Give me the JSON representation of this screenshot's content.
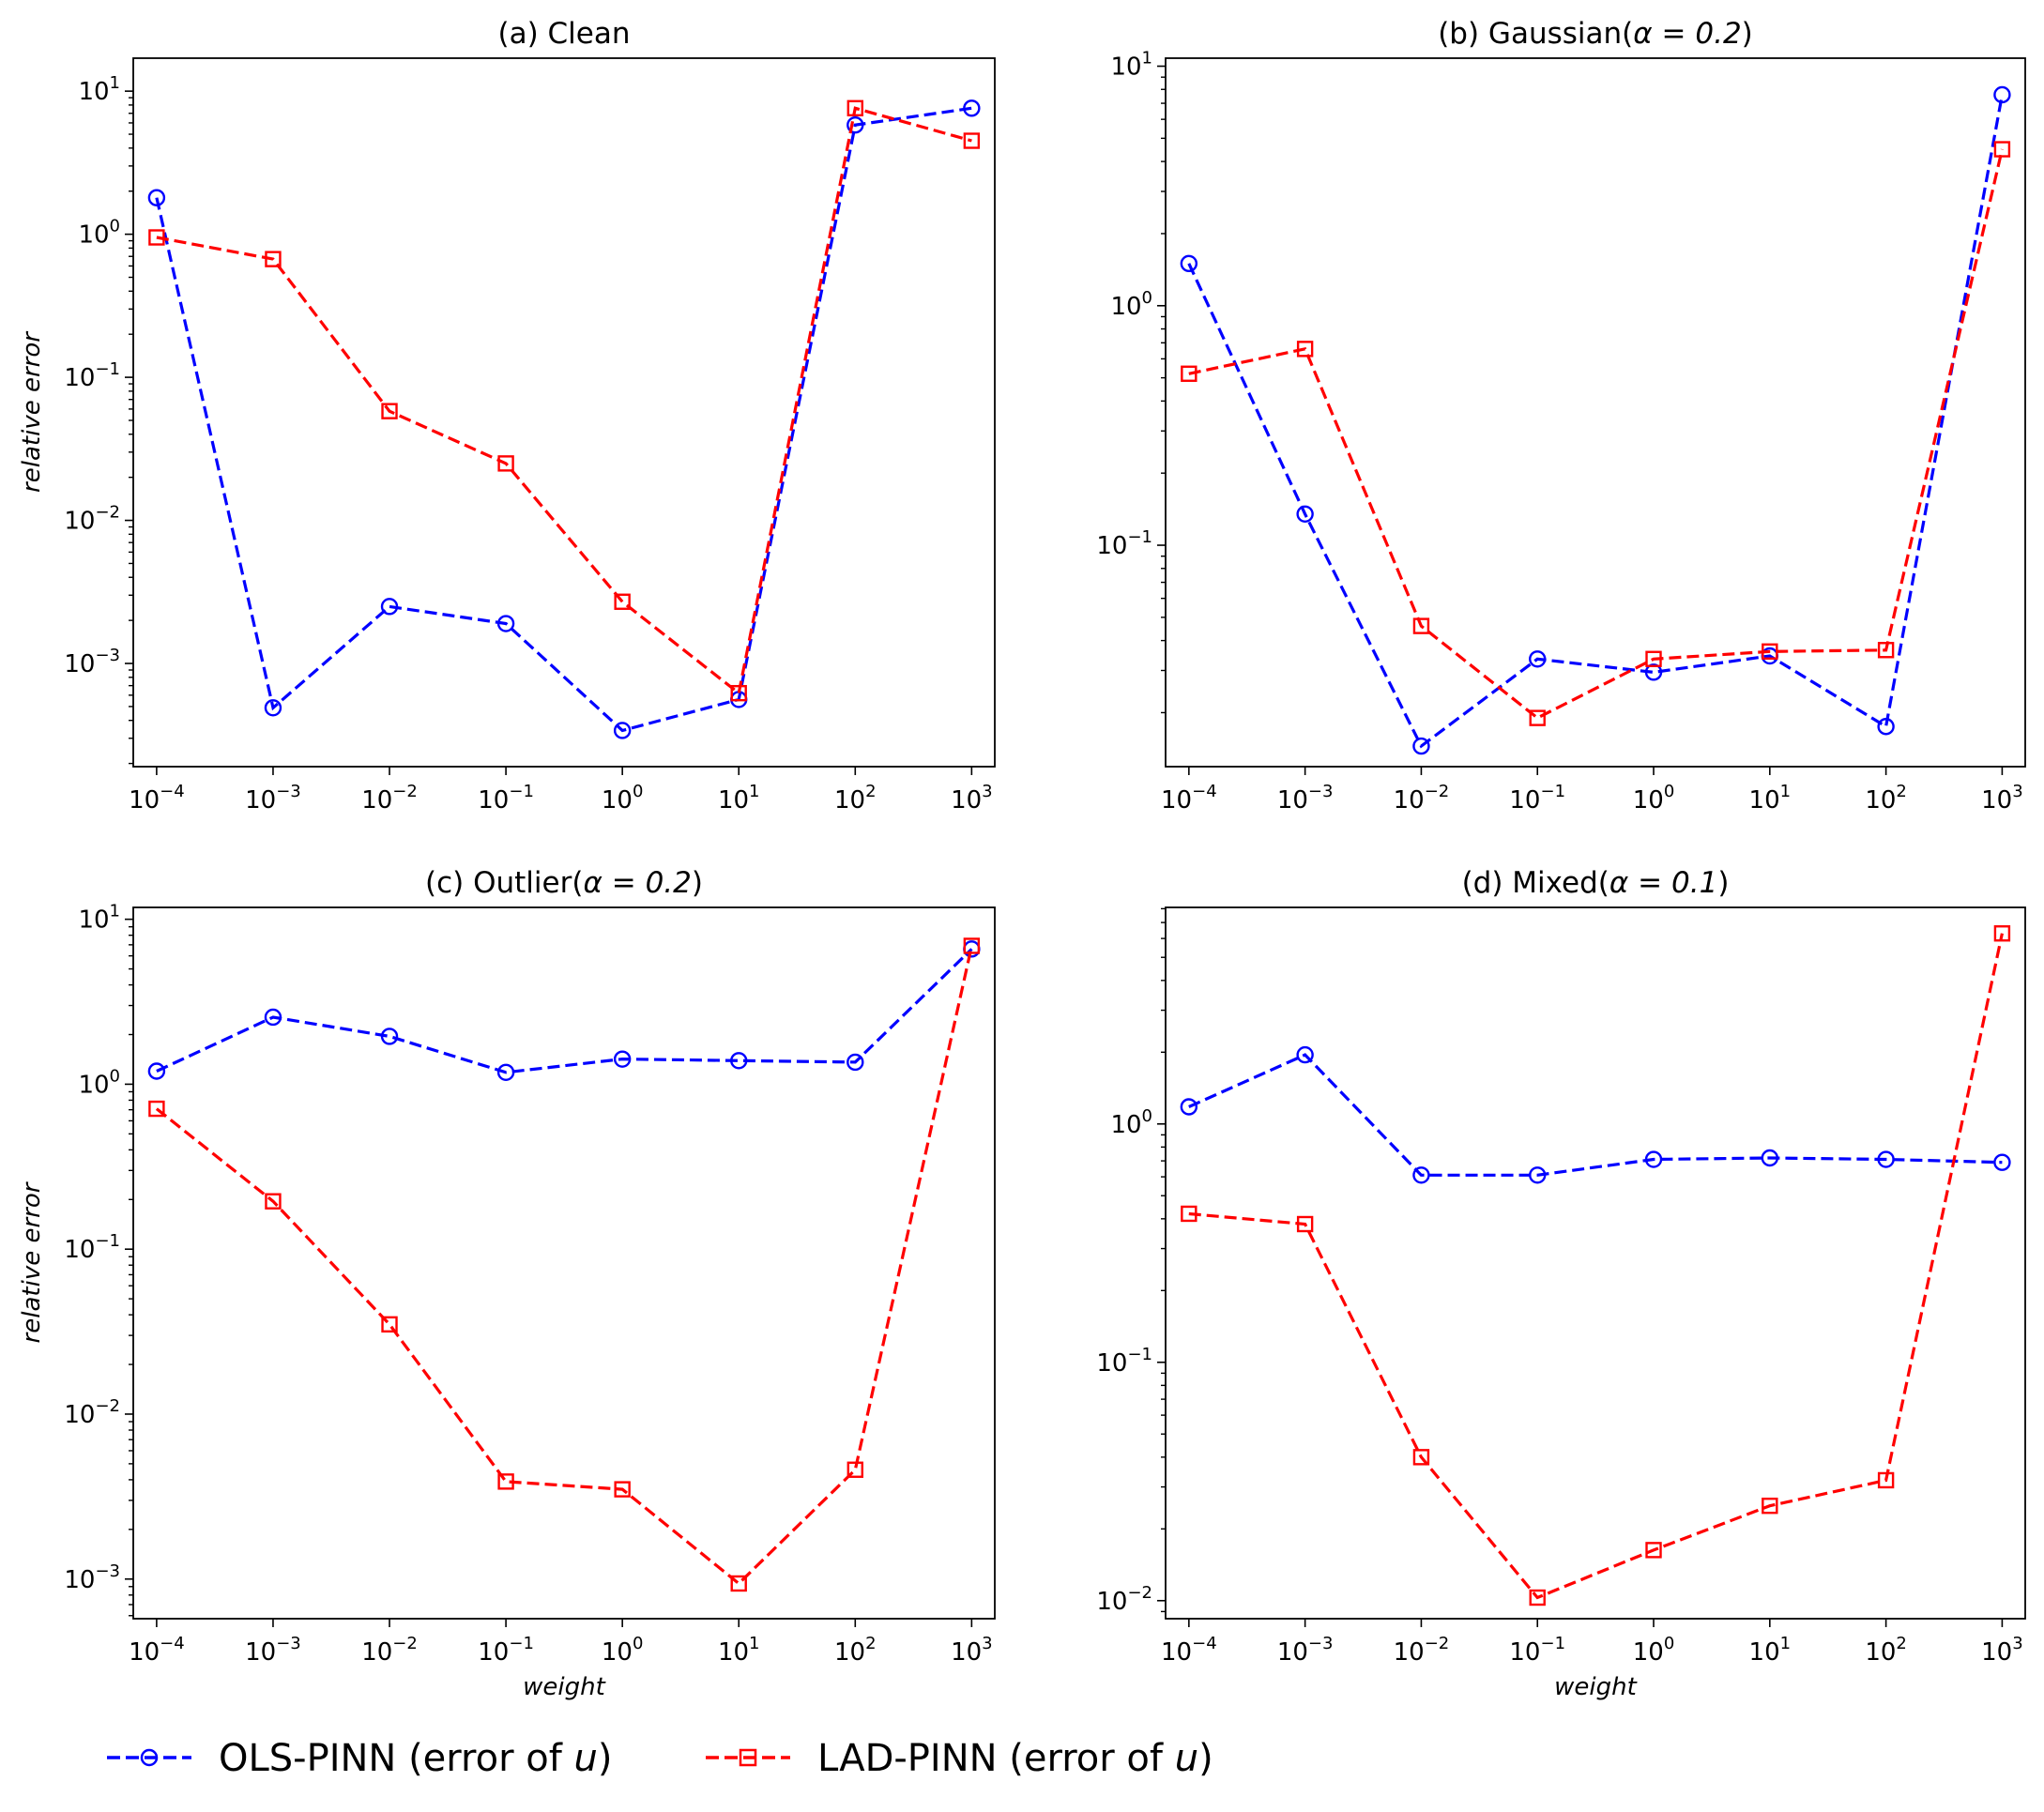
{
  "legend": [
    {
      "label": "OLS-PINN (error of ",
      "var": "u",
      "close": ")",
      "color": "#0000ff",
      "marker": "circle"
    },
    {
      "label": "LAD-PINN (error of ",
      "var": "u",
      "close": ")",
      "color": "#ff0000",
      "marker": "square"
    }
  ],
  "chart_data": [
    {
      "type": "line",
      "title_prefix": "(a) Clean",
      "title_param": "",
      "xlabel": "",
      "ylabel": "relative error",
      "xscale": "log",
      "yscale": "log",
      "ylim": [
        0.00019,
        17
      ],
      "yticks": [
        0.001,
        0.01,
        0.1,
        1,
        10
      ],
      "ytick_labels": [
        [
          "10",
          "−3"
        ],
        [
          "10",
          "−2"
        ],
        [
          "10",
          "−1"
        ],
        [
          "10",
          "0"
        ],
        [
          "10",
          "1"
        ]
      ],
      "x": [
        0.0001,
        0.001,
        0.01,
        0.1,
        1,
        10,
        100,
        1000
      ],
      "xtick_labels": [
        [
          "10",
          "−4"
        ],
        [
          "10",
          "−3"
        ],
        [
          "10",
          "−2"
        ],
        [
          "10",
          "−1"
        ],
        [
          "10",
          "0"
        ],
        [
          "10",
          "1"
        ],
        [
          "10",
          "2"
        ],
        [
          "10",
          "3"
        ]
      ],
      "series": [
        {
          "name": "OLS-PINN",
          "color": "#0000ff",
          "marker": "circle",
          "values": [
            1.8,
            0.00049,
            0.0025,
            0.0019,
            0.00034,
            0.00056,
            5.8,
            7.6
          ]
        },
        {
          "name": "LAD-PINN",
          "color": "#ff0000",
          "marker": "square",
          "values": [
            0.95,
            0.67,
            0.058,
            0.025,
            0.0027,
            0.00062,
            7.6,
            4.5
          ]
        }
      ]
    },
    {
      "type": "line",
      "title_prefix": "(b) Gaussian(",
      "title_param": "α = 0.2",
      "title_suffix": ")",
      "xlabel": "",
      "ylabel": "",
      "xscale": "log",
      "yscale": "log",
      "ylim": [
        0.0119,
        10.8
      ],
      "yticks": [
        0.1,
        1,
        10
      ],
      "ytick_labels": [
        [
          "10",
          "−1"
        ],
        [
          "10",
          "0"
        ],
        [
          "10",
          "1"
        ]
      ],
      "x": [
        0.0001,
        0.001,
        0.01,
        0.1,
        1,
        10,
        100,
        1000
      ],
      "xtick_labels": [
        [
          "10",
          "−4"
        ],
        [
          "10",
          "−3"
        ],
        [
          "10",
          "−2"
        ],
        [
          "10",
          "−1"
        ],
        [
          "10",
          "0"
        ],
        [
          "10",
          "1"
        ],
        [
          "10",
          "2"
        ],
        [
          "10",
          "3"
        ]
      ],
      "series": [
        {
          "name": "OLS-PINN",
          "color": "#0000ff",
          "marker": "circle",
          "values": [
            1.5,
            0.135,
            0.0145,
            0.0335,
            0.0295,
            0.0345,
            0.0175,
            7.6
          ]
        },
        {
          "name": "LAD-PINN",
          "color": "#ff0000",
          "marker": "square",
          "values": [
            0.52,
            0.66,
            0.046,
            0.019,
            0.0335,
            0.036,
            0.0365,
            4.5
          ]
        }
      ]
    },
    {
      "type": "line",
      "title_prefix": "(c) Outlier(",
      "title_param": "α = 0.2",
      "title_suffix": ")",
      "xlabel": "weight",
      "ylabel": "relative error",
      "xscale": "log",
      "yscale": "log",
      "ylim": [
        0.000575,
        11.8
      ],
      "yticks": [
        0.001,
        0.01,
        0.1,
        1,
        10
      ],
      "ytick_labels": [
        [
          "10",
          "−3"
        ],
        [
          "10",
          "−2"
        ],
        [
          "10",
          "−1"
        ],
        [
          "10",
          "0"
        ],
        [
          "10",
          "1"
        ]
      ],
      "x": [
        0.0001,
        0.001,
        0.01,
        0.1,
        1,
        10,
        100,
        1000
      ],
      "xtick_labels": [
        [
          "10",
          "−4"
        ],
        [
          "10",
          "−3"
        ],
        [
          "10",
          "−2"
        ],
        [
          "10",
          "−1"
        ],
        [
          "10",
          "0"
        ],
        [
          "10",
          "1"
        ],
        [
          "10",
          "2"
        ],
        [
          "10",
          "3"
        ]
      ],
      "series": [
        {
          "name": "OLS-PINN",
          "color": "#0000ff",
          "marker": "circle",
          "values": [
            1.2,
            2.55,
            1.95,
            1.18,
            1.42,
            1.39,
            1.36,
            6.6
          ]
        },
        {
          "name": "LAD-PINN",
          "color": "#ff0000",
          "marker": "square",
          "values": [
            0.71,
            0.195,
            0.035,
            0.0039,
            0.0035,
            0.00094,
            0.0046,
            6.9
          ]
        }
      ]
    },
    {
      "type": "line",
      "title_prefix": "(d) Mixed(",
      "title_param": "α = 0.1",
      "title_suffix": ")",
      "xlabel": "weight",
      "ylabel": "",
      "xscale": "log",
      "yscale": "log",
      "ylim": [
        0.0084,
        8.1
      ],
      "yticks": [
        0.01,
        0.1,
        1
      ],
      "ytick_labels": [
        [
          "10",
          "−2"
        ],
        [
          "10",
          "−1"
        ],
        [
          "10",
          "0"
        ]
      ],
      "x": [
        0.0001,
        0.001,
        0.01,
        0.1,
        1,
        10,
        100,
        1000
      ],
      "xtick_labels": [
        [
          "10",
          "−4"
        ],
        [
          "10",
          "−3"
        ],
        [
          "10",
          "−2"
        ],
        [
          "10",
          "−1"
        ],
        [
          "10",
          "0"
        ],
        [
          "10",
          "1"
        ],
        [
          "10",
          "2"
        ],
        [
          "10",
          "3"
        ]
      ],
      "series": [
        {
          "name": "OLS-PINN",
          "color": "#0000ff",
          "marker": "circle",
          "values": [
            1.18,
            1.95,
            0.61,
            0.61,
            0.71,
            0.72,
            0.71,
            0.69
          ]
        },
        {
          "name": "LAD-PINN",
          "color": "#ff0000",
          "marker": "square",
          "values": [
            0.42,
            0.38,
            0.04,
            0.0103,
            0.0163,
            0.025,
            0.032,
            6.3
          ]
        }
      ]
    }
  ]
}
